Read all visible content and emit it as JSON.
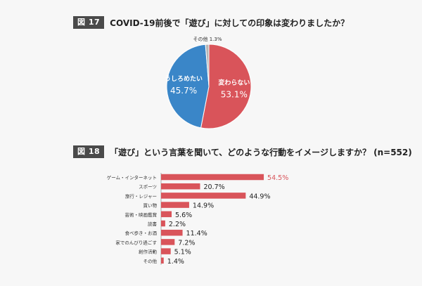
{
  "figure17": {
    "badge": "図 17",
    "title": "COVID-19前後で「遊び」に対しての印象は変わりましたか？"
  },
  "figure18": {
    "badge": "図 18",
    "title": "「遊び」という言葉を聞いて、どのような行動をイメージしますか？ (n=552)"
  },
  "colors": {
    "red": "#d9545a",
    "blue": "#3a86c8",
    "gray": "#b5b5b5",
    "badge_bg": "#4a4a4a"
  },
  "chart_data": [
    {
      "type": "pie",
      "slices": [
        {
          "label": "変わらない",
          "value": 53.1,
          "value_label": "53.1%",
          "color": "#d9545a"
        },
        {
          "label": "うしろめたい",
          "value": 45.7,
          "value_label": "45.7%",
          "color": "#3a86c8"
        },
        {
          "label": "その他",
          "value": 1.3,
          "value_label": "1.3%",
          "color": "#b5b5b5"
        }
      ]
    },
    {
      "type": "bar",
      "orientation": "horizontal",
      "categories": [
        "ゲーム・インターネット",
        "スポーツ",
        "旅行・レジャー",
        "買い物",
        "芸術・映画鑑賞",
        "読書",
        "食べ歩き・お酒",
        "家でのんびり過ごす",
        "創作活動",
        "その他"
      ],
      "values": [
        54.5,
        20.7,
        44.9,
        14.9,
        5.6,
        2.2,
        11.4,
        7.2,
        5.1,
        1.4
      ],
      "value_labels": [
        "54.5%",
        "20.7%",
        "44.9%",
        "14.9%",
        "5.6%",
        "2.2%",
        "11.4%",
        "7.2%",
        "5.1%",
        "1.4%"
      ],
      "highlight_index": 0,
      "color": "#d9545a"
    }
  ]
}
